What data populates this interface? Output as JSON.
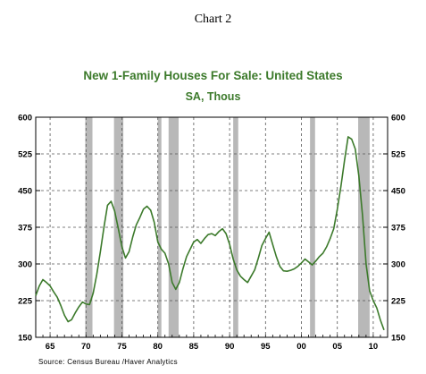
{
  "header": {
    "chart_number": "Chart 2"
  },
  "chart_data": {
    "type": "line",
    "title": "New 1-Family Houses For Sale: United States",
    "subtitle": "SA, Thous",
    "source": "Source:  Census Bureau /Haver Analytics",
    "ylim": [
      150,
      600
    ],
    "xlim": [
      1963,
      2012
    ],
    "y_ticks": [
      150,
      225,
      300,
      375,
      450,
      525,
      600
    ],
    "x_ticks": [
      {
        "value": 1965,
        "label": "65"
      },
      {
        "value": 1970,
        "label": "70"
      },
      {
        "value": 1975,
        "label": "75"
      },
      {
        "value": 1980,
        "label": "80"
      },
      {
        "value": 1985,
        "label": "85"
      },
      {
        "value": 1990,
        "label": "90"
      },
      {
        "value": 1995,
        "label": "95"
      },
      {
        "value": 2000,
        "label": "00"
      },
      {
        "value": 2005,
        "label": "05"
      },
      {
        "value": 2010,
        "label": "10"
      }
    ],
    "recessions": [
      [
        1969.9,
        1970.9
      ],
      [
        1973.9,
        1975.2
      ],
      [
        1980.0,
        1980.5
      ],
      [
        1981.5,
        1982.9
      ],
      [
        1990.5,
        1991.2
      ],
      [
        2001.2,
        2001.9
      ],
      [
        2007.9,
        2009.5
      ]
    ],
    "grid": true,
    "line_color": "#3c7a2b",
    "series": [
      {
        "x": [
          1963.0,
          1963.5,
          1964.0,
          1964.5,
          1965.0,
          1965.5,
          1966.0,
          1966.5,
          1967.0,
          1967.5,
          1968.0,
          1968.5,
          1969.0,
          1969.5,
          1970.0,
          1970.5,
          1971.0,
          1971.5,
          1972.0,
          1972.5,
          1973.0,
          1973.5,
          1974.0,
          1974.5,
          1975.0,
          1975.5,
          1976.0,
          1976.5,
          1977.0,
          1977.5,
          1978.0,
          1978.5,
          1979.0,
          1979.5,
          1980.0,
          1980.5,
          1981.0,
          1981.5,
          1982.0,
          1982.5,
          1983.0,
          1983.5,
          1984.0,
          1984.5,
          1985.0,
          1985.5,
          1986.0,
          1986.5,
          1987.0,
          1987.5,
          1988.0,
          1988.5,
          1989.0,
          1989.5,
          1990.0,
          1990.5,
          1991.0,
          1991.5,
          1992.0,
          1992.5,
          1993.0,
          1993.5,
          1994.0,
          1994.5,
          1995.0,
          1995.5,
          1996.0,
          1996.5,
          1997.0,
          1997.5,
          1998.0,
          1998.5,
          1999.0,
          1999.5,
          2000.0,
          2000.5,
          2001.0,
          2001.5,
          2002.0,
          2002.5,
          2003.0,
          2003.5,
          2004.0,
          2004.5,
          2005.0,
          2005.5,
          2006.0,
          2006.5,
          2007.0,
          2007.5,
          2008.0,
          2008.5,
          2009.0,
          2009.5,
          2010.0,
          2010.5,
          2011.0,
          2011.5
        ],
        "values": [
          235,
          255,
          268,
          262,
          255,
          243,
          232,
          215,
          195,
          182,
          186,
          200,
          212,
          222,
          218,
          217,
          240,
          278,
          325,
          375,
          420,
          428,
          408,
          372,
          335,
          312,
          325,
          355,
          380,
          395,
          412,
          418,
          410,
          385,
          345,
          330,
          322,
          300,
          262,
          248,
          262,
          290,
          315,
          330,
          345,
          350,
          342,
          352,
          360,
          362,
          358,
          366,
          372,
          362,
          340,
          310,
          288,
          275,
          268,
          262,
          275,
          288,
          312,
          338,
          352,
          365,
          340,
          315,
          295,
          286,
          285,
          287,
          290,
          295,
          302,
          310,
          304,
          298,
          306,
          315,
          322,
          335,
          352,
          372,
          412,
          458,
          512,
          560,
          555,
          535,
          480,
          400,
          300,
          245,
          225,
          210,
          185,
          165
        ]
      }
    ]
  }
}
